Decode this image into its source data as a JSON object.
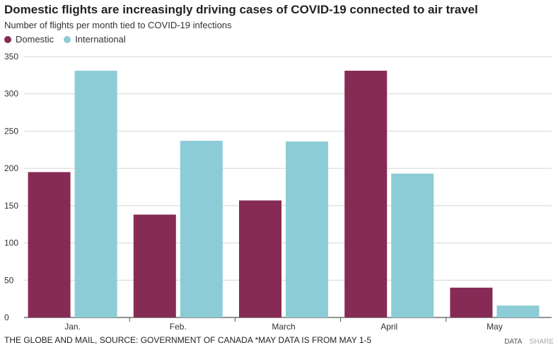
{
  "header": {
    "title": "Domestic flights are increasingly driving cases of COVID-19 connected to air travel",
    "subtitle": "Number of flights per month tied to COVID-19 infections"
  },
  "legend": [
    {
      "label": "Domestic",
      "color": "#862b56"
    },
    {
      "label": "International",
      "color": "#8bccd6"
    }
  ],
  "chart_data": {
    "type": "bar",
    "title": "Domestic flights are increasingly driving cases of COVID-19 connected to air travel",
    "subtitle": "Number of flights per month tied to COVID-19 infections",
    "categories": [
      "Jan.",
      "Feb.",
      "March",
      "April",
      "May"
    ],
    "series": [
      {
        "name": "Domestic",
        "color": "#862b56",
        "values": [
          195,
          138,
          157,
          331,
          40
        ]
      },
      {
        "name": "International",
        "color": "#8bccd6",
        "values": [
          331,
          237,
          236,
          193,
          16
        ]
      }
    ],
    "xlabel": "",
    "ylabel": "",
    "ylim": [
      0,
      350
    ],
    "yticks": [
      0,
      50,
      100,
      150,
      200,
      250,
      300,
      350
    ],
    "grid": true,
    "legend_position": "top-left"
  },
  "footer": {
    "source": "THE GLOBE AND MAIL, SOURCE: GOVERNMENT OF CANADA *MAY DATA IS FROM MAY 1-5",
    "data_link": "DATA",
    "share_link": "SHARE"
  }
}
